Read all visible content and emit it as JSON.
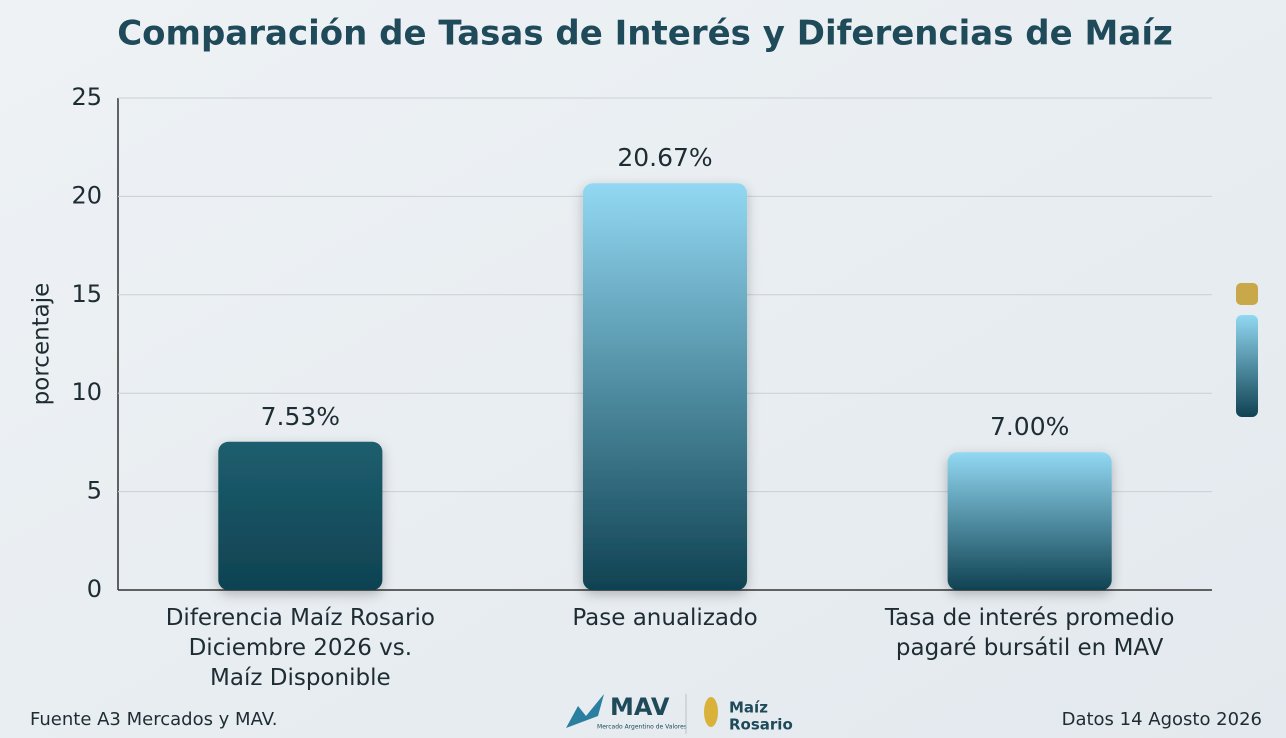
{
  "chart_data": {
    "type": "bar",
    "title": "Comparación de Tasas de Interés y Diferencias de Maíz",
    "y_label": "porcentaje",
    "categories": [
      "Diferencia Maíz Rosario\nDiciembre 2026 vs.\nMaíz Disponible",
      "Pase anualizado",
      "Tasa de interés promedio\npagaré bursátil en MAV"
    ],
    "values": [
      7.53,
      20.67,
      7.0
    ],
    "value_labels": [
      "7.53%",
      "20.67%",
      "7.00%"
    ],
    "bar_gradients": [
      [
        "#1d5e6e",
        "#0f4252"
      ],
      [
        "#92d8f2",
        "#0f4252"
      ],
      [
        "#92d8f2",
        "#0f4252"
      ]
    ],
    "ylim": [
      0,
      25
    ],
    "yticks": [
      0,
      5,
      10,
      15,
      20,
      25
    ],
    "grid": true,
    "source": "Fuente A3 Mercados y MAV.",
    "date_note": "Datos 14 Agosto 2026",
    "logos": {
      "mav": "MAV",
      "mav_sub": "Mercado Argentino de Valores",
      "maiz": "Maíz",
      "rosario": "Rosario"
    }
  }
}
